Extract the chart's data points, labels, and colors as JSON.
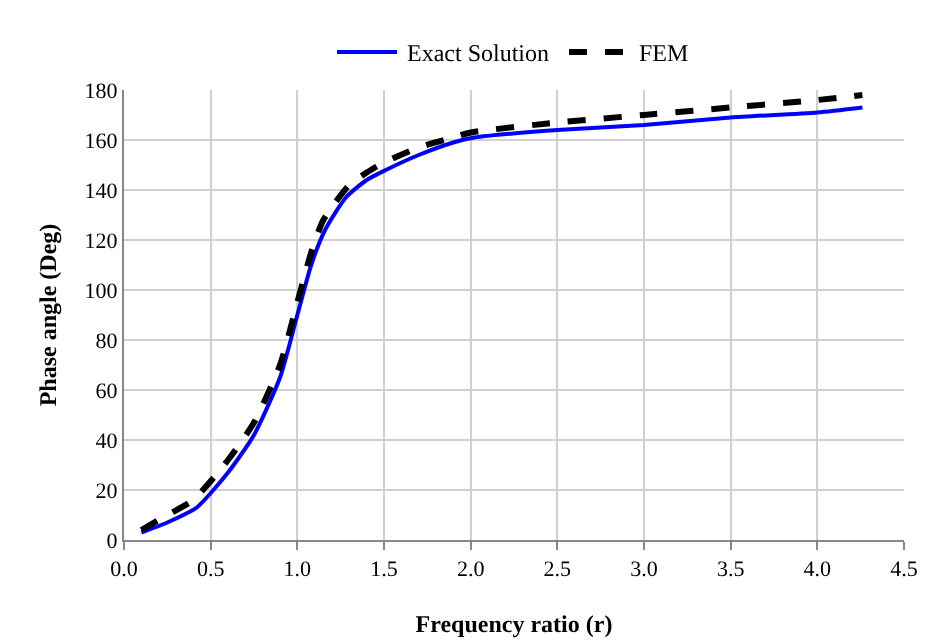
{
  "chart_data": {
    "type": "line",
    "xlabel": "Frequency ratio (r)",
    "ylabel": "Phase angle (Deg)",
    "xlim": [
      0,
      4.5
    ],
    "xticks": [
      {
        "value": 0,
        "label": "0.0"
      },
      {
        "value": 0.5,
        "label": "0.5"
      },
      {
        "value": 1,
        "label": "1.0"
      },
      {
        "value": 1.5,
        "label": "1.5"
      },
      {
        "value": 2,
        "label": "2.0"
      },
      {
        "value": 2.5,
        "label": "2.5"
      },
      {
        "value": 3,
        "label": "3.0"
      },
      {
        "value": 3.5,
        "label": "3.5"
      },
      {
        "value": 4,
        "label": "4.0"
      },
      {
        "value": 4.5,
        "label": "4.5"
      }
    ],
    "ylim": [
      0,
      180
    ],
    "yticks": [
      0,
      20,
      40,
      60,
      80,
      100,
      120,
      140,
      160,
      180
    ],
    "grid": true,
    "legend": "top",
    "marker": "none",
    "series": [
      {
        "name": "Exact Solution",
        "color": "#0000ff",
        "line_style": "solid",
        "x": [
          0.1,
          0.25,
          0.42,
          0.6,
          0.75,
          0.9,
          1.0,
          1.08,
          1.16,
          1.28,
          1.4,
          1.51,
          1.7,
          1.9,
          2.02,
          2.5,
          3.0,
          3.5,
          4.0,
          4.26
        ],
        "values": [
          3,
          7,
          13,
          27,
          42,
          65,
          90,
          110,
          124,
          137,
          144,
          148,
          154,
          159,
          161,
          164,
          166,
          169,
          171,
          173
        ]
      },
      {
        "name": "FEM",
        "color": "#000000",
        "line_style": "dashed",
        "x": [
          0.1,
          0.25,
          0.4,
          0.6,
          0.75,
          0.9,
          1.0,
          1.08,
          1.15,
          1.3,
          1.4,
          1.5,
          1.7,
          1.9,
          2.0,
          2.5,
          3.0,
          3.5,
          4.0,
          4.26
        ],
        "values": [
          4,
          10,
          16,
          32,
          47,
          70,
          95,
          115,
          128,
          142,
          147,
          151,
          157,
          161,
          163,
          167,
          170,
          173,
          176,
          178
        ]
      }
    ]
  }
}
